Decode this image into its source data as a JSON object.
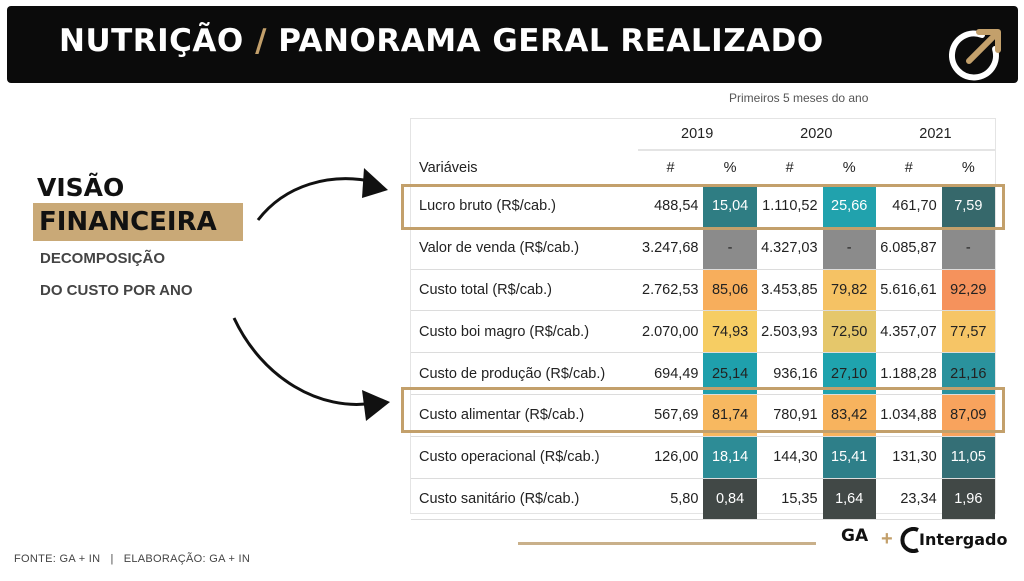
{
  "header": {
    "title_part1": "NUTRIÇÃO",
    "title_slash": "/",
    "title_part2": "PANORAMA GERAL REALIZADO"
  },
  "subtitle": "Primeiros 5 meses do ano",
  "side": {
    "line1": "VISÃO",
    "line2": "FINANCEIRA",
    "sub1": "DECOMPOSIÇÃO",
    "sub2": "DO CUSTO POR ANO"
  },
  "table": {
    "years": [
      "2019",
      "2020",
      "2021"
    ],
    "var_header": "Variáveis",
    "num_header": "#",
    "pct_header": "%",
    "rows": [
      {
        "label": "Lucro bruto (R$/cab.)",
        "v": [
          "488,54",
          "15,04",
          "1.110,52",
          "25,66",
          "461,70",
          "7,59"
        ],
        "c": [
          "#2f7d83",
          "#21a2ad",
          "#36686b"
        ],
        "t": [
          "#ffffff",
          "#ffffff",
          "#ffffff"
        ]
      },
      {
        "label": "Valor de venda (R$/cab.)",
        "v": [
          "3.247,68",
          "-",
          "4.327,03",
          "-",
          "6.085,87",
          "-"
        ],
        "c": [
          "#8b8b8b",
          "#8b8b8b",
          "#8b8b8b"
        ],
        "t": [
          "#222222",
          "#222222",
          "#222222"
        ]
      },
      {
        "label": "Custo total (R$/cab.)",
        "v": [
          "2.762,53",
          "85,06",
          "3.453,85",
          "79,82",
          "5.616,61",
          "92,29"
        ],
        "c": [
          "#f7ae5c",
          "#f5c264",
          "#f5925c"
        ],
        "t": [
          "#222222",
          "#222222",
          "#222222"
        ]
      },
      {
        "label": "Custo boi magro (R$/cab.)",
        "v": [
          "2.070,00",
          "74,93",
          "2.503,93",
          "72,50",
          "4.357,07",
          "77,57"
        ],
        "c": [
          "#f6cd63",
          "#e5c76b",
          "#f6c566"
        ],
        "t": [
          "#222222",
          "#222222",
          "#222222"
        ]
      },
      {
        "label": "Custo de produção (R$/cab.)",
        "v": [
          "694,49",
          "25,14",
          "936,16",
          "27,10",
          "1.188,28",
          "21,16"
        ],
        "c": [
          "#1fa0ac",
          "#1fa3ae",
          "#2a929d"
        ],
        "t": [
          "#222222",
          "#222222",
          "#222222"
        ]
      },
      {
        "label": "Custo alimentar (R$/cab.)",
        "v": [
          "567,69",
          "81,74",
          "780,91",
          "83,42",
          "1.034,88",
          "87,09"
        ],
        "c": [
          "#f7b860",
          "#f7b35e",
          "#f8a35d"
        ],
        "t": [
          "#222222",
          "#222222",
          "#222222"
        ]
      },
      {
        "label": "Custo operacional (R$/cab.)",
        "v": [
          "126,00",
          "18,14",
          "144,30",
          "15,41",
          "131,30",
          "11,05"
        ],
        "c": [
          "#2d8c96",
          "#2e7f89",
          "#346f76"
        ],
        "t": [
          "#ffffff",
          "#ffffff",
          "#ffffff"
        ]
      },
      {
        "label": "Custo sanitário (R$/cab.)",
        "v": [
          "5,80",
          "0,84",
          "15,35",
          "1,64",
          "23,34",
          "1,96"
        ],
        "c": [
          "#414846",
          "#414846",
          "#414846"
        ],
        "t": [
          "#ffffff",
          "#ffffff",
          "#ffffff"
        ]
      }
    ]
  },
  "footer": {
    "text": "FONTE: GA + IN   |   ELABORAÇÃO: GA + IN"
  },
  "logos": {
    "ga": "GA",
    "plus": "+",
    "intergado": "Intergado"
  },
  "colors": {
    "banner_bg": "#0b0b0b",
    "accent_gold": "#c3a06b",
    "highlight_box": "#c3a06b",
    "side_highlight_bg": "#c9a977"
  }
}
